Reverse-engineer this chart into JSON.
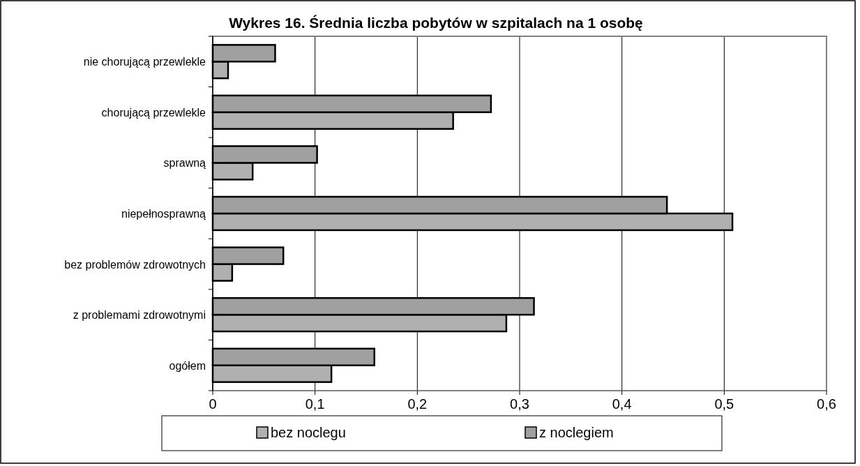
{
  "chart_data": {
    "type": "bar",
    "orientation": "horizontal",
    "title": "Wykres 16. Średnia liczba pobytów w szpitalach  na 1 osobę",
    "categories": [
      "nie chorującą przewlekle",
      "chorującą przewlekle",
      "sprawną",
      "niepełnosprawną",
      "bez problemów zdrowotnych",
      "z problemami zdrowotnymi",
      "ogółem"
    ],
    "series": [
      {
        "name": "bez noclegu",
        "color": "#b0b0b0",
        "values": [
          0.015,
          0.235,
          0.039,
          0.508,
          0.019,
          0.287,
          0.116
        ]
      },
      {
        "name": "z noclegiem",
        "color": "#a0a0a0",
        "values": [
          0.061,
          0.272,
          0.102,
          0.444,
          0.069,
          0.314,
          0.158
        ]
      }
    ],
    "xlim": [
      0,
      0.6
    ],
    "xticks": [
      {
        "value": 0,
        "label": "0"
      },
      {
        "value": 0.1,
        "label": "0,1"
      },
      {
        "value": 0.2,
        "label": "0,2"
      },
      {
        "value": 0.3,
        "label": "0,3"
      },
      {
        "value": 0.4,
        "label": "0,4"
      },
      {
        "value": 0.5,
        "label": "0,5"
      },
      {
        "value": 0.6,
        "label": "0,6"
      }
    ],
    "grid": "x",
    "legend": "bottom"
  }
}
